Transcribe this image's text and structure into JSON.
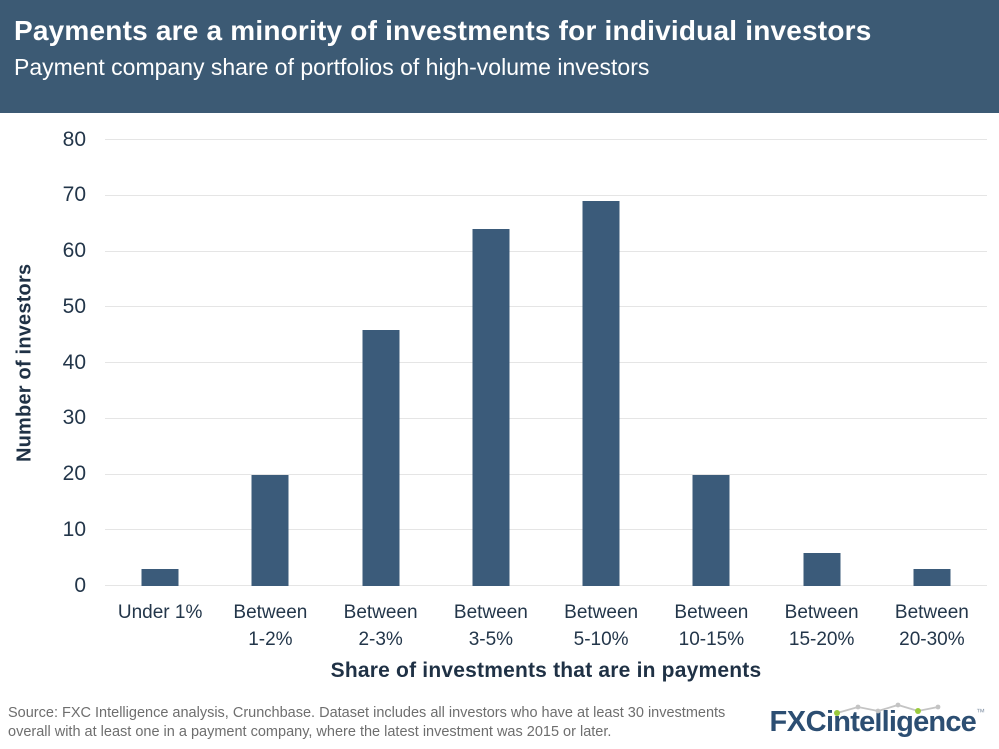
{
  "header": {
    "title": "Payments are a minority of investments for individual investors",
    "subtitle": "Payment company share of portfolios of high-volume investors"
  },
  "chart_data": {
    "type": "bar",
    "title": "Payments are a minority of investments for individual investors",
    "subtitle": "Payment company share of portfolios of high-volume investors",
    "categories": [
      "Under 1%",
      "Between 1-2%",
      "Between 2-3%",
      "Between 3-5%",
      "Between 5-10%",
      "Between 10-15%",
      "Between 15-20%",
      "Between 20-30%"
    ],
    "category_lines": [
      [
        "Under 1%"
      ],
      [
        "Between",
        "1-2%"
      ],
      [
        "Between",
        "2-3%"
      ],
      [
        "Between",
        "3-5%"
      ],
      [
        "Between",
        "5-10%"
      ],
      [
        "Between",
        "10-15%"
      ],
      [
        "Between",
        "15-20%"
      ],
      [
        "Between",
        "20-30%"
      ]
    ],
    "values": [
      3,
      20,
      46,
      64,
      69,
      20,
      6,
      3
    ],
    "xlabel": "Share of investments that are in payments",
    "ylabel": "Number of investors",
    "ylim": [
      0,
      80
    ],
    "yticks": [
      0,
      10,
      20,
      30,
      40,
      50,
      60,
      70,
      80
    ],
    "grid": "horizontal",
    "legend_position": "none",
    "bar_color": "#3B5B7A"
  },
  "footer": {
    "source": "Source: FXC Intelligence analysis, Crunchbase. Dataset includes all investors who have at least 30 investments overall with at least one in a payment company, where the latest investment was 2015 or later.",
    "logo": {
      "part1": "FXC",
      "part2": "intelligence",
      "tm": "™"
    }
  },
  "colors": {
    "header_bg": "#3C5A74",
    "bar": "#3B5B7A",
    "axis_text": "#23364A",
    "axis_title_text": "#1F3145",
    "gridline": "#E5E5E5",
    "source_text": "#6E6E6E",
    "logo_blue": "#2C4E72",
    "logo_green": "#9ACA3C",
    "logo_sparkline_gray": "#C4C4C4"
  }
}
